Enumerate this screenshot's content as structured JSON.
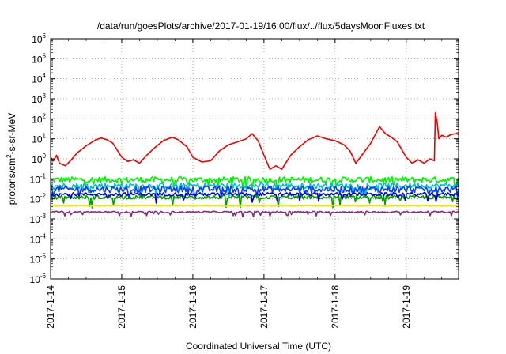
{
  "chart_data": {
    "type": "line",
    "title": "/data/run/goesPlots/archive/2017-01-19/16:00/flux/../flux/5daysMoonFluxes.txt",
    "xlabel": "Coordinated Universal Time (UTC)",
    "ylabel": {
      "prefix": "protons/cm",
      "sup": "2",
      "suffix": "-s-sr-MeV"
    },
    "yscale": "log",
    "ylim": [
      1e-06,
      1000000.0
    ],
    "xlim": [
      "2017-01-14",
      "2017-01-19T17:40"
    ],
    "grid": true,
    "x_ticks": [
      "2017-1-14",
      "2017-1-15",
      "2017-1-16",
      "2017-1-17",
      "2017-1-18",
      "2017-1-19"
    ],
    "y_ticks": [
      {
        "base": "10",
        "exp": "6"
      },
      {
        "base": "10",
        "exp": "5"
      },
      {
        "base": "10",
        "exp": "4"
      },
      {
        "base": "10",
        "exp": "3"
      },
      {
        "base": "10",
        "exp": "2"
      },
      {
        "base": "10",
        "exp": "1"
      },
      {
        "base": "10",
        "exp": "0"
      },
      {
        "base": "10",
        "exp": "-1"
      },
      {
        "base": "10",
        "exp": "-2"
      },
      {
        "base": "10",
        "exp": "-3"
      },
      {
        "base": "10",
        "exp": "-4"
      },
      {
        "base": "10",
        "exp": "-5"
      },
      {
        "base": "10",
        "exp": "-6"
      }
    ],
    "series": [
      {
        "color": "#ee0000",
        "points": [
          [
            "2017-01-14T00:00",
            1.2
          ],
          [
            "2017-01-14T01:00",
            0.8
          ],
          [
            "2017-01-14T02:00",
            1.5
          ],
          [
            "2017-01-14T03:00",
            0.6
          ],
          [
            "2017-01-14T05:00",
            0.45
          ],
          [
            "2017-01-14T07:00",
            0.9
          ],
          [
            "2017-01-14T09:00",
            2.0
          ],
          [
            "2017-01-14T12:00",
            4.5
          ],
          [
            "2017-01-14T15:00",
            8.5
          ],
          [
            "2017-01-14T17:00",
            11
          ],
          [
            "2017-01-14T19:00",
            9
          ],
          [
            "2017-01-14T21:00",
            6
          ],
          [
            "2017-01-15T00:00",
            1.2
          ],
          [
            "2017-01-15T02:00",
            0.75
          ],
          [
            "2017-01-15T04:00",
            0.9
          ],
          [
            "2017-01-15T06:00",
            0.6
          ],
          [
            "2017-01-15T08:00",
            1.3
          ],
          [
            "2017-01-15T11:00",
            3.5
          ],
          [
            "2017-01-15T14:00",
            8
          ],
          [
            "2017-01-15T17:00",
            12
          ],
          [
            "2017-01-15T19:00",
            9
          ],
          [
            "2017-01-15T22:00",
            4
          ],
          [
            "2017-01-16T00:00",
            1.2
          ],
          [
            "2017-01-16T03:00",
            0.7
          ],
          [
            "2017-01-16T06:00",
            0.8
          ],
          [
            "2017-01-16T09:00",
            2.5
          ],
          [
            "2017-01-16T12:00",
            5
          ],
          [
            "2017-01-16T15:00",
            7
          ],
          [
            "2017-01-16T18:00",
            10
          ],
          [
            "2017-01-16T20:00",
            18
          ],
          [
            "2017-01-16T22:00",
            8
          ],
          [
            "2017-01-17T00:00",
            1.5
          ],
          [
            "2017-01-17T02:00",
            0.3
          ],
          [
            "2017-01-17T04:00",
            0.45
          ],
          [
            "2017-01-17T06:00",
            0.3
          ],
          [
            "2017-01-17T09:00",
            1.5
          ],
          [
            "2017-01-17T12:00",
            4
          ],
          [
            "2017-01-17T15:00",
            9
          ],
          [
            "2017-01-17T18:00",
            14
          ],
          [
            "2017-01-17T21:00",
            10
          ],
          [
            "2017-01-18T00:00",
            8
          ],
          [
            "2017-01-18T03:00",
            5
          ],
          [
            "2017-01-18T05:00",
            2.5
          ],
          [
            "2017-01-18T07:00",
            0.6
          ],
          [
            "2017-01-18T09:00",
            1.5
          ],
          [
            "2017-01-18T12:00",
            6
          ],
          [
            "2017-01-18T15:00",
            40
          ],
          [
            "2017-01-18T17:00",
            18
          ],
          [
            "2017-01-18T19:00",
            12
          ],
          [
            "2017-01-18T21:00",
            7
          ],
          [
            "2017-01-19T00:00",
            1.2
          ],
          [
            "2017-01-19T02:00",
            0.6
          ],
          [
            "2017-01-19T04:00",
            0.9
          ],
          [
            "2017-01-19T06:00",
            0.6
          ],
          [
            "2017-01-19T08:00",
            1.0
          ],
          [
            "2017-01-19T09:30",
            0.8
          ],
          [
            "2017-01-19T09:50",
            200
          ],
          [
            "2017-01-19T10:30",
            60
          ],
          [
            "2017-01-19T11:00",
            10
          ],
          [
            "2017-01-19T12:00",
            15
          ],
          [
            "2017-01-19T13:30",
            12
          ],
          [
            "2017-01-19T15:00",
            16
          ],
          [
            "2017-01-19T16:30",
            18
          ],
          [
            "2017-01-19T17:40",
            17
          ]
        ]
      },
      {
        "color": "#00ee00",
        "baseline": 0.09,
        "spread": 0.3,
        "dips": 0.25
      },
      {
        "color": "#00c0c0",
        "baseline": 0.045,
        "spread": 0.28,
        "dips": 0.3
      },
      {
        "color": "#0040ff",
        "baseline": 0.03,
        "spread": 0.32,
        "dips": 0.3
      },
      {
        "color": "#00a000",
        "baseline": 0.012,
        "spread": 0.18,
        "dips": 0.35
      },
      {
        "color": "#0000cc",
        "baseline": 0.017,
        "spread": 0.16,
        "dips": 0.25
      },
      {
        "color": "#e8e800",
        "baseline": 0.0045,
        "spread": 0.05,
        "dips": 0.0
      },
      {
        "color": "#8b2a7a",
        "baseline": 0.0022,
        "spread": 0.08,
        "dips": 0.15
      }
    ]
  }
}
